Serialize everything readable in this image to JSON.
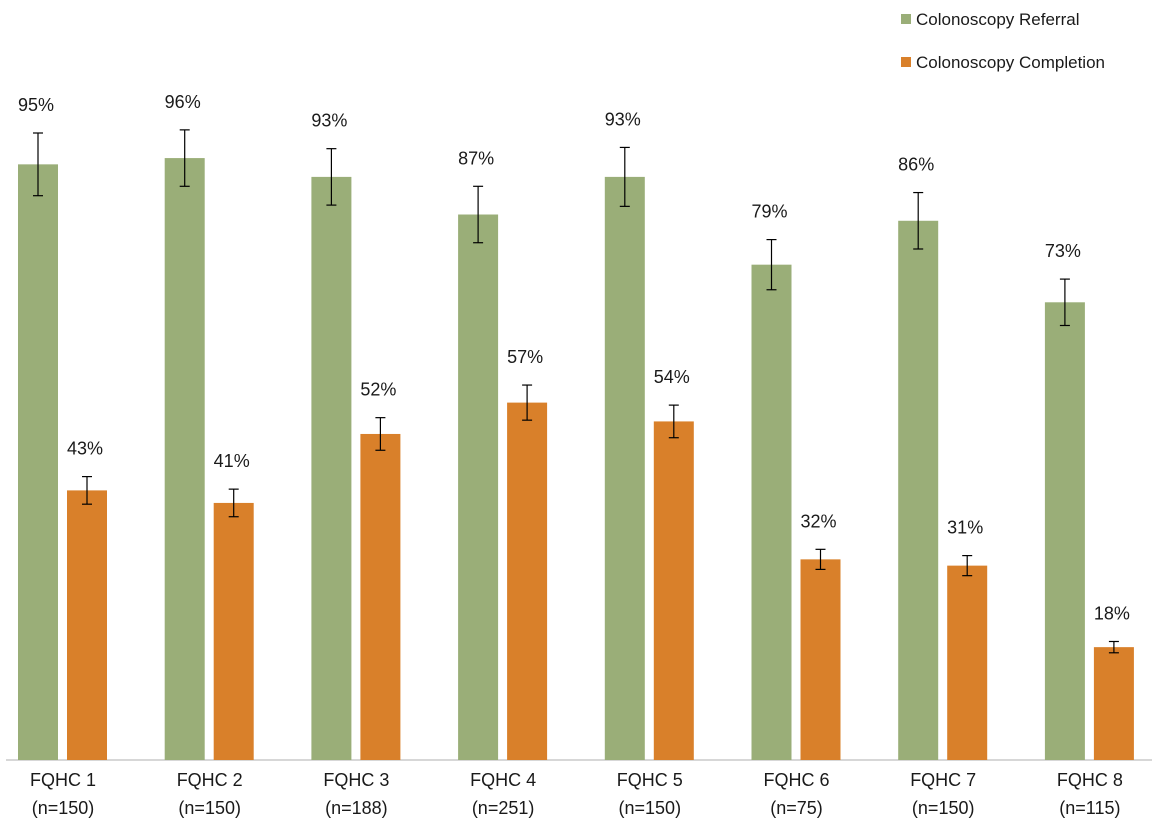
{
  "chart_data": {
    "type": "bar",
    "title": "",
    "xlabel": "",
    "ylabel": "",
    "ylim": [
      0,
      100
    ],
    "grid": false,
    "legend_position": "top-right",
    "categories": [
      [
        "FQHC 1",
        "(n=150)"
      ],
      [
        "FQHC 2",
        "(n=150)"
      ],
      [
        "FQHC 3",
        "(n=188)"
      ],
      [
        "FQHC 4",
        "(n=251)"
      ],
      [
        "FQHC 5",
        "(n=150)"
      ],
      [
        "FQHC 6",
        "(n=75)"
      ],
      [
        "FQHC 7",
        "(n=150)"
      ],
      [
        "FQHC 8",
        "(n=115)"
      ]
    ],
    "series": [
      {
        "name": "Colonoscopy Referral",
        "color": "#9aae78",
        "values": [
          95,
          96,
          93,
          87,
          93,
          79,
          86,
          73
        ],
        "labels": [
          "95%",
          "96%",
          "93%",
          "87%",
          "93%",
          "79%",
          "86%",
          "73%"
        ],
        "error": [
          5,
          4.5,
          4.5,
          4.5,
          4.7,
          4,
          4.5,
          3.7
        ]
      },
      {
        "name": "Colonoscopy Completion",
        "color": "#d9802a",
        "values": [
          43,
          41,
          52,
          57,
          54,
          32,
          31,
          18
        ],
        "labels": [
          "43%",
          "41%",
          "52%",
          "57%",
          "54%",
          "32%",
          "31%",
          "18%"
        ],
        "error": [
          2.2,
          2.2,
          2.6,
          2.8,
          2.6,
          1.6,
          1.6,
          0.9
        ]
      }
    ]
  }
}
